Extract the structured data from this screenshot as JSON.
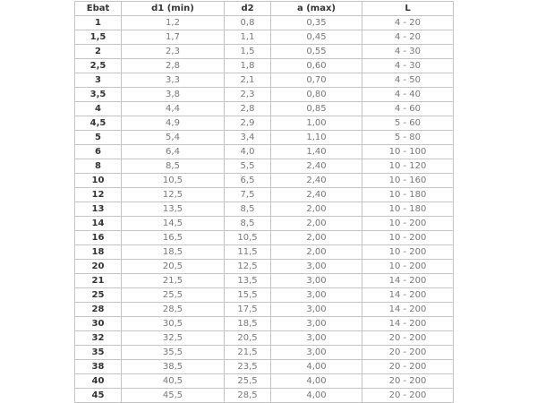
{
  "table": {
    "headers": [
      "Ebat",
      "d1 (min)",
      "d2",
      "a (max)",
      "L"
    ],
    "rows": [
      [
        "1",
        "1,2",
        "0,8",
        "0,35",
        "4 - 20"
      ],
      [
        "1,5",
        "1,7",
        "1,1",
        "0,45",
        "4 - 20"
      ],
      [
        "2",
        "2,3",
        "1,5",
        "0,55",
        "4 - 30"
      ],
      [
        "2,5",
        "2,8",
        "1,8",
        "0,60",
        "4 - 30"
      ],
      [
        "3",
        "3,3",
        "2,1",
        "0,70",
        "4 - 50"
      ],
      [
        "3,5",
        "3,8",
        "2,3",
        "0,80",
        "4 - 40"
      ],
      [
        "4",
        "4,4",
        "2,8",
        "0,85",
        "4 - 60"
      ],
      [
        "4,5",
        "4,9",
        "2,9",
        "1,00",
        "5 - 60"
      ],
      [
        "5",
        "5,4",
        "3,4",
        "1,10",
        "5 - 80"
      ],
      [
        "6",
        "6,4",
        "4,0",
        "1,40",
        "10 - 100"
      ],
      [
        "8",
        "8,5",
        "5,5",
        "2,40",
        "10 - 120"
      ],
      [
        "10",
        "10,5",
        "6,5",
        "2,40",
        "10 - 160"
      ],
      [
        "12",
        "12,5",
        "7,5",
        "2,40",
        "10 - 180"
      ],
      [
        "13",
        "13,5",
        "8,5",
        "2,00",
        "10 - 180"
      ],
      [
        "14",
        "14,5",
        "8,5",
        "2,00",
        "10 - 200"
      ],
      [
        "16",
        "16,5",
        "10,5",
        "2,00",
        "10 - 200"
      ],
      [
        "18",
        "18,5",
        "11,5",
        "2,00",
        "10 - 200"
      ],
      [
        "20",
        "20,5",
        "12,5",
        "3,00",
        "10 - 200"
      ],
      [
        "21",
        "21,5",
        "13,5",
        "3,00",
        "14 - 200"
      ],
      [
        "25",
        "25,5",
        "15,5",
        "3,00",
        "14 - 200"
      ],
      [
        "28",
        "28,5",
        "17,5",
        "3,00",
        "14 - 200"
      ],
      [
        "30",
        "30,5",
        "18,5",
        "3,00",
        "14 - 200"
      ],
      [
        "32",
        "32,5",
        "20,5",
        "3,00",
        "20 - 200"
      ],
      [
        "35",
        "35,5",
        "21,5",
        "3,00",
        "20 - 200"
      ],
      [
        "38",
        "38,5",
        "23,5",
        "4,00",
        "20 - 200"
      ],
      [
        "40",
        "40,5",
        "25,5",
        "4,00",
        "20 - 200"
      ],
      [
        "45",
        "45,5",
        "28,5",
        "4,00",
        "20 - 200"
      ]
    ]
  }
}
